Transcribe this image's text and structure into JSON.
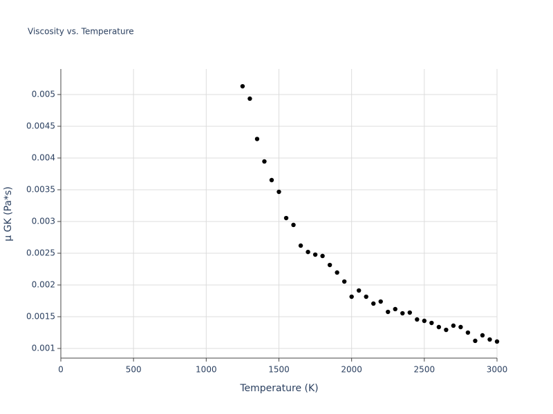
{
  "chart_data": {
    "type": "scatter",
    "title": "Viscosity vs. Temperature",
    "x_label": "Temperature (K)",
    "y_label": "μ GK (Pa*s)",
    "color": "#000000",
    "grid": true,
    "xlim": [
      0,
      3000
    ],
    "xticks": [
      0,
      500,
      1000,
      1500,
      2000,
      2500,
      3000
    ],
    "ylim": [
      0.000848,
      0.005402
    ],
    "yticks": [
      0.001,
      0.0015,
      0.002,
      0.0025,
      0.003,
      0.0035,
      0.004,
      0.0045,
      0.005
    ],
    "x": [
      1250,
      1300,
      1350,
      1400,
      1450,
      1500,
      1550,
      1600,
      1650,
      1700,
      1750,
      1800,
      1850,
      1900,
      1950,
      2000,
      2050,
      2100,
      2150,
      2200,
      2250,
      2300,
      2350,
      2400,
      2450,
      2500,
      2550,
      2600,
      2650,
      2700,
      2750,
      2800,
      2850,
      2900,
      2950,
      3000
    ],
    "values": [
      0.00513,
      0.004935,
      0.0043,
      0.003946,
      0.003652,
      0.003467,
      0.003054,
      0.002946,
      0.00262,
      0.00252,
      0.002478,
      0.002457,
      0.002315,
      0.002196,
      0.002054,
      0.001815,
      0.001913,
      0.001815,
      0.001707,
      0.001739,
      0.001576,
      0.00162,
      0.001554,
      0.001565,
      0.001457,
      0.001435,
      0.001402,
      0.001337,
      0.001293,
      0.001359,
      0.001337,
      0.00125,
      0.00112,
      0.001207,
      0.001141,
      0.001109
    ]
  }
}
